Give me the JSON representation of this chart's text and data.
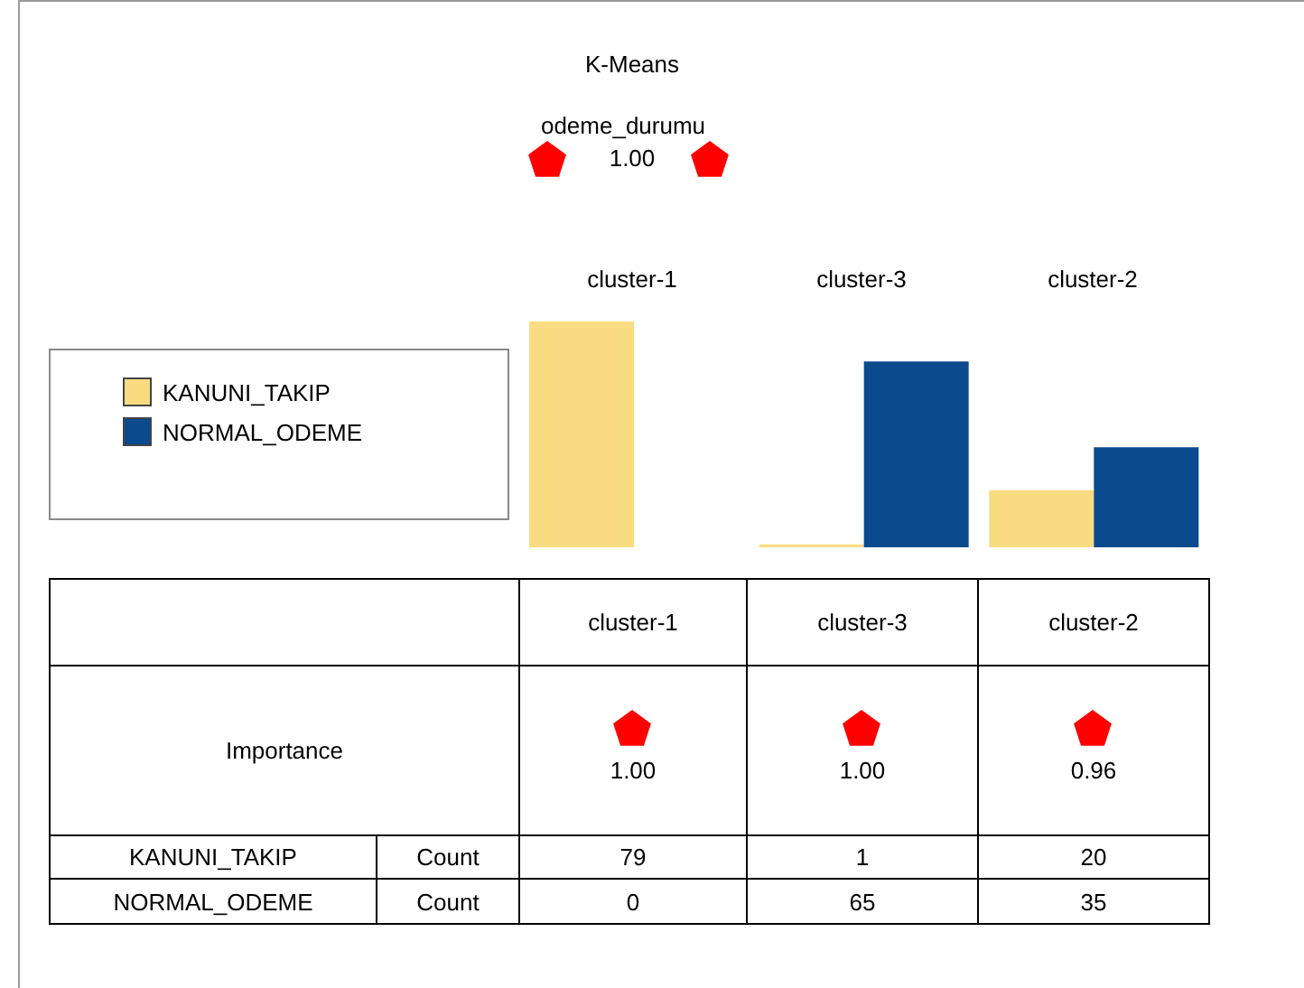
{
  "chart_data": {
    "type": "bar",
    "title": "K-Means",
    "subtitle": "odeme_durumu",
    "categories": [
      "cluster-1",
      "cluster-3",
      "cluster-2"
    ],
    "series": [
      {
        "name": "KANUNI_TAKIP",
        "color": "#f9dc82",
        "values": [
          79,
          1,
          20
        ]
      },
      {
        "name": "NORMAL_ODEME",
        "color": "#0b4a8c",
        "values": [
          0,
          65,
          35
        ]
      }
    ],
    "data_labels": true,
    "legend": "left",
    "grid": false,
    "tick_labels": false,
    "annotations": [
      "1.00",
      "Importance",
      "1.00",
      "1.00",
      "0.96",
      "Count"
    ]
  }
}
